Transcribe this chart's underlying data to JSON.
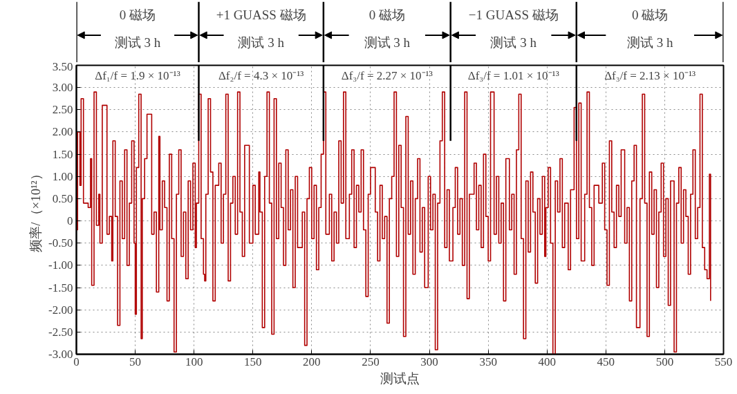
{
  "chart_data": {
    "type": "step",
    "xlabel": "测试点",
    "ylabel": "频率/（×10¹²）",
    "xlim": [
      0,
      550
    ],
    "ylim": [
      -3,
      3.5
    ],
    "xticks": [
      0,
      50,
      100,
      150,
      200,
      250,
      300,
      350,
      400,
      450,
      500,
      550
    ],
    "yticks": [
      {
        "value": -3,
        "label": "-3.00"
      },
      {
        "value": -2.5,
        "label": "-2.50"
      },
      {
        "value": -2,
        "label": "-2.00"
      },
      {
        "value": -1.5,
        "label": "-1.50"
      },
      {
        "value": -1,
        "label": "-1.00"
      },
      {
        "value": -0.5,
        "label": "-0.50"
      },
      0,
      {
        "value": 0.5,
        "label": "0.50"
      },
      {
        "value": 1,
        "label": "1.00"
      },
      {
        "value": 1.5,
        "label": "1.50"
      },
      {
        "value": 2,
        "label": "2.00"
      },
      {
        "value": 2.5,
        "label": "2.50"
      },
      {
        "value": 3,
        "label": "3.00"
      },
      {
        "value": 3.5,
        "label": "3.50"
      }
    ],
    "grid": true,
    "line_style": "solid",
    "marker": "none",
    "series": [
      {
        "color": "#b00000",
        "x": [
          0,
          1,
          3,
          4,
          6,
          10,
          12,
          13,
          15,
          17,
          19,
          20,
          22,
          26,
          28,
          30,
          31,
          33,
          35,
          37,
          39,
          41,
          43,
          45,
          47,
          49,
          50,
          51,
          53,
          55,
          56,
          58,
          60,
          64,
          66,
          68,
          70,
          71,
          73,
          75,
          77,
          79,
          81,
          83,
          85,
          87,
          89,
          91,
          93,
          95,
          97,
          99,
          101,
          102,
          104,
          106,
          108,
          109,
          110,
          112,
          114,
          116,
          118,
          121,
          123,
          125,
          127,
          129,
          131,
          133,
          135,
          137,
          139,
          141,
          143,
          147,
          150,
          152,
          155,
          156,
          158,
          160,
          162,
          164,
          166,
          168,
          170,
          172,
          174,
          176,
          178,
          180,
          182,
          184,
          186,
          188,
          192,
          194,
          196,
          198,
          200,
          202,
          204,
          206,
          208,
          210,
          212,
          215,
          217,
          219,
          221,
          223,
          225,
          227,
          229,
          232,
          234,
          236,
          238,
          240,
          242,
          244,
          246,
          248,
          250,
          254,
          256,
          258,
          260,
          262,
          264,
          266,
          268,
          270,
          272,
          274,
          276,
          278,
          280,
          282,
          284,
          286,
          288,
          290,
          292,
          294,
          296,
          299,
          301,
          303,
          305,
          307,
          309,
          311,
          313,
          315,
          317,
          320,
          322,
          324,
          326,
          328,
          330,
          332,
          334,
          338,
          340,
          342,
          344,
          346,
          348,
          350,
          352,
          355,
          357,
          359,
          361,
          363,
          365,
          368,
          370,
          372,
          374,
          376,
          378,
          380,
          382,
          384,
          386,
          388,
          390,
          392,
          394,
          396,
          398,
          399,
          401,
          403,
          405,
          407,
          409,
          411,
          413,
          415,
          418,
          420,
          423,
          425,
          427,
          429,
          432,
          434,
          436,
          438,
          440,
          444,
          447,
          449,
          451,
          453,
          455,
          457,
          459,
          461,
          463,
          466,
          468,
          470,
          472,
          474,
          476,
          479,
          481,
          483,
          485,
          487,
          489,
          491,
          493,
          495,
          497,
          499,
          501,
          503,
          505,
          508,
          510,
          512,
          514,
          516,
          518,
          520,
          522,
          524,
          526,
          528,
          530,
          532,
          534,
          536,
          538,
          539
        ],
        "values": [
          -0.2,
          2.0,
          0.8,
          2.75,
          0.4,
          0.3,
          1.4,
          -1.45,
          2.9,
          -0.1,
          0.6,
          -0.5,
          2.6,
          -0.3,
          0.1,
          -0.9,
          1.8,
          0.1,
          -2.35,
          0.9,
          -0.4,
          1.6,
          -1.0,
          0.4,
          1.8,
          -0.5,
          -2.1,
          1.2,
          2.85,
          -2.65,
          0.5,
          1.4,
          2.4,
          -0.3,
          0.2,
          -1.6,
          1.9,
          -0.2,
          0.9,
          0.3,
          -1.8,
          1.5,
          -0.4,
          -2.95,
          0.6,
          1.6,
          -0.8,
          0.2,
          -1.3,
          0.9,
          -0.2,
          1.3,
          -0.6,
          0.4,
          2.85,
          -0.4,
          -1.2,
          -1.35,
          0.6,
          2.75,
          1.1,
          -1.8,
          0.8,
          1.3,
          -0.5,
          0.6,
          2.85,
          -1.35,
          0.4,
          1.0,
          -0.3,
          2.9,
          0.2,
          -0.8,
          1.7,
          -0.5,
          0.8,
          -0.3,
          1.1,
          0.2,
          -2.4,
          1.0,
          2.9,
          0.4,
          -2.55,
          2.75,
          -0.4,
          1.3,
          0.3,
          -1.0,
          1.6,
          -0.2,
          0.7,
          -1.5,
          1.0,
          -0.6,
          0.2,
          -2.8,
          0.5,
          1.2,
          -0.4,
          0.8,
          -1.1,
          0.3,
          1.5,
          2.9,
          -0.3,
          0.6,
          -0.9,
          0.2,
          -0.5,
          1.8,
          0.4,
          2.9,
          -0.4,
          0.6,
          1.6,
          -0.6,
          0.8,
          0.2,
          1.6,
          -0.2,
          -1.7,
          0.6,
          1.2,
          0.2,
          -0.9,
          0.8,
          -0.4,
          0.1,
          -2.3,
          0.5,
          1.0,
          2.9,
          -0.8,
          1.7,
          0.3,
          -2.6,
          2.35,
          -0.3,
          0.9,
          -1.2,
          0.5,
          1.4,
          -0.7,
          0.3,
          -1.5,
          1.0,
          -0.2,
          0.6,
          -2.9,
          0.4,
          1.8,
          2.9,
          -0.6,
          0.7,
          -0.9,
          0.3,
          1.2,
          -0.3,
          0.5,
          -1.0,
          2.9,
          -1.75,
          0.6,
          1.3,
          -0.2,
          0.8,
          -0.6,
          1.5,
          0.1,
          -0.9,
          2.9,
          -0.3,
          1.0,
          -0.5,
          0.4,
          -1.8,
          1.4,
          -0.2,
          0.6,
          -1.2,
          1.6,
          2.85,
          -0.4,
          -2.65,
          0.9,
          -0.7,
          1.1,
          0.2,
          -1.4,
          0.5,
          -0.3,
          1.0,
          -0.8,
          0.3,
          1.2,
          -0.5,
          -3.0,
          0.9,
          0.2,
          1.4,
          -0.6,
          0.4,
          -1.1,
          0.7,
          2.55,
          -0.4,
          2.65,
          -0.9,
          0.6,
          2.9,
          0.3,
          -1.0,
          0.8,
          0.4,
          1.3,
          -0.2,
          -1.45,
          1.8,
          0.2,
          -0.6,
          0.8,
          0.1,
          1.6,
          -0.5,
          0.3,
          -1.8,
          0.9,
          1.7,
          -2.4,
          0.5,
          2.85,
          0.4,
          -2.6,
          1.1,
          -0.3,
          0.7,
          -1.5,
          0.2,
          1.3,
          -0.8,
          0.5,
          -1.9,
          0.9,
          -2.95,
          0.4,
          1.2,
          -0.5,
          0.7,
          0.1,
          -1.2,
          0.6,
          1.6,
          -0.4,
          0.3,
          2.85,
          -0.6,
          -1.1,
          -1.3,
          1.05,
          -1.8
        ]
      }
    ],
    "ref_lines": [
      {
        "axis": "x",
        "value": 104
      },
      {
        "axis": "x",
        "value": 210
      },
      {
        "axis": "x",
        "value": 318
      },
      {
        "axis": "x",
        "value": 425
      }
    ],
    "annotations": [
      "0 磁场",
      "测试 3 h",
      "Δf₁/f = 1.9 × 10⁻¹³",
      "+1 GUASS 磁场",
      "测试 3 h",
      "Δf₂/f = 4.3 × 10⁻¹³",
      "0 磁场",
      "测试 3 h",
      "Δf₃/f = 2.27 × 10⁻¹³",
      "−1 GUASS 磁场",
      "测试 3 h",
      "Δf₃/f = 1.01 × 10⁻¹³",
      "0 磁场",
      "测试 3 h",
      "Δf₃/f = 2.13 × 10⁻¹³"
    ]
  }
}
